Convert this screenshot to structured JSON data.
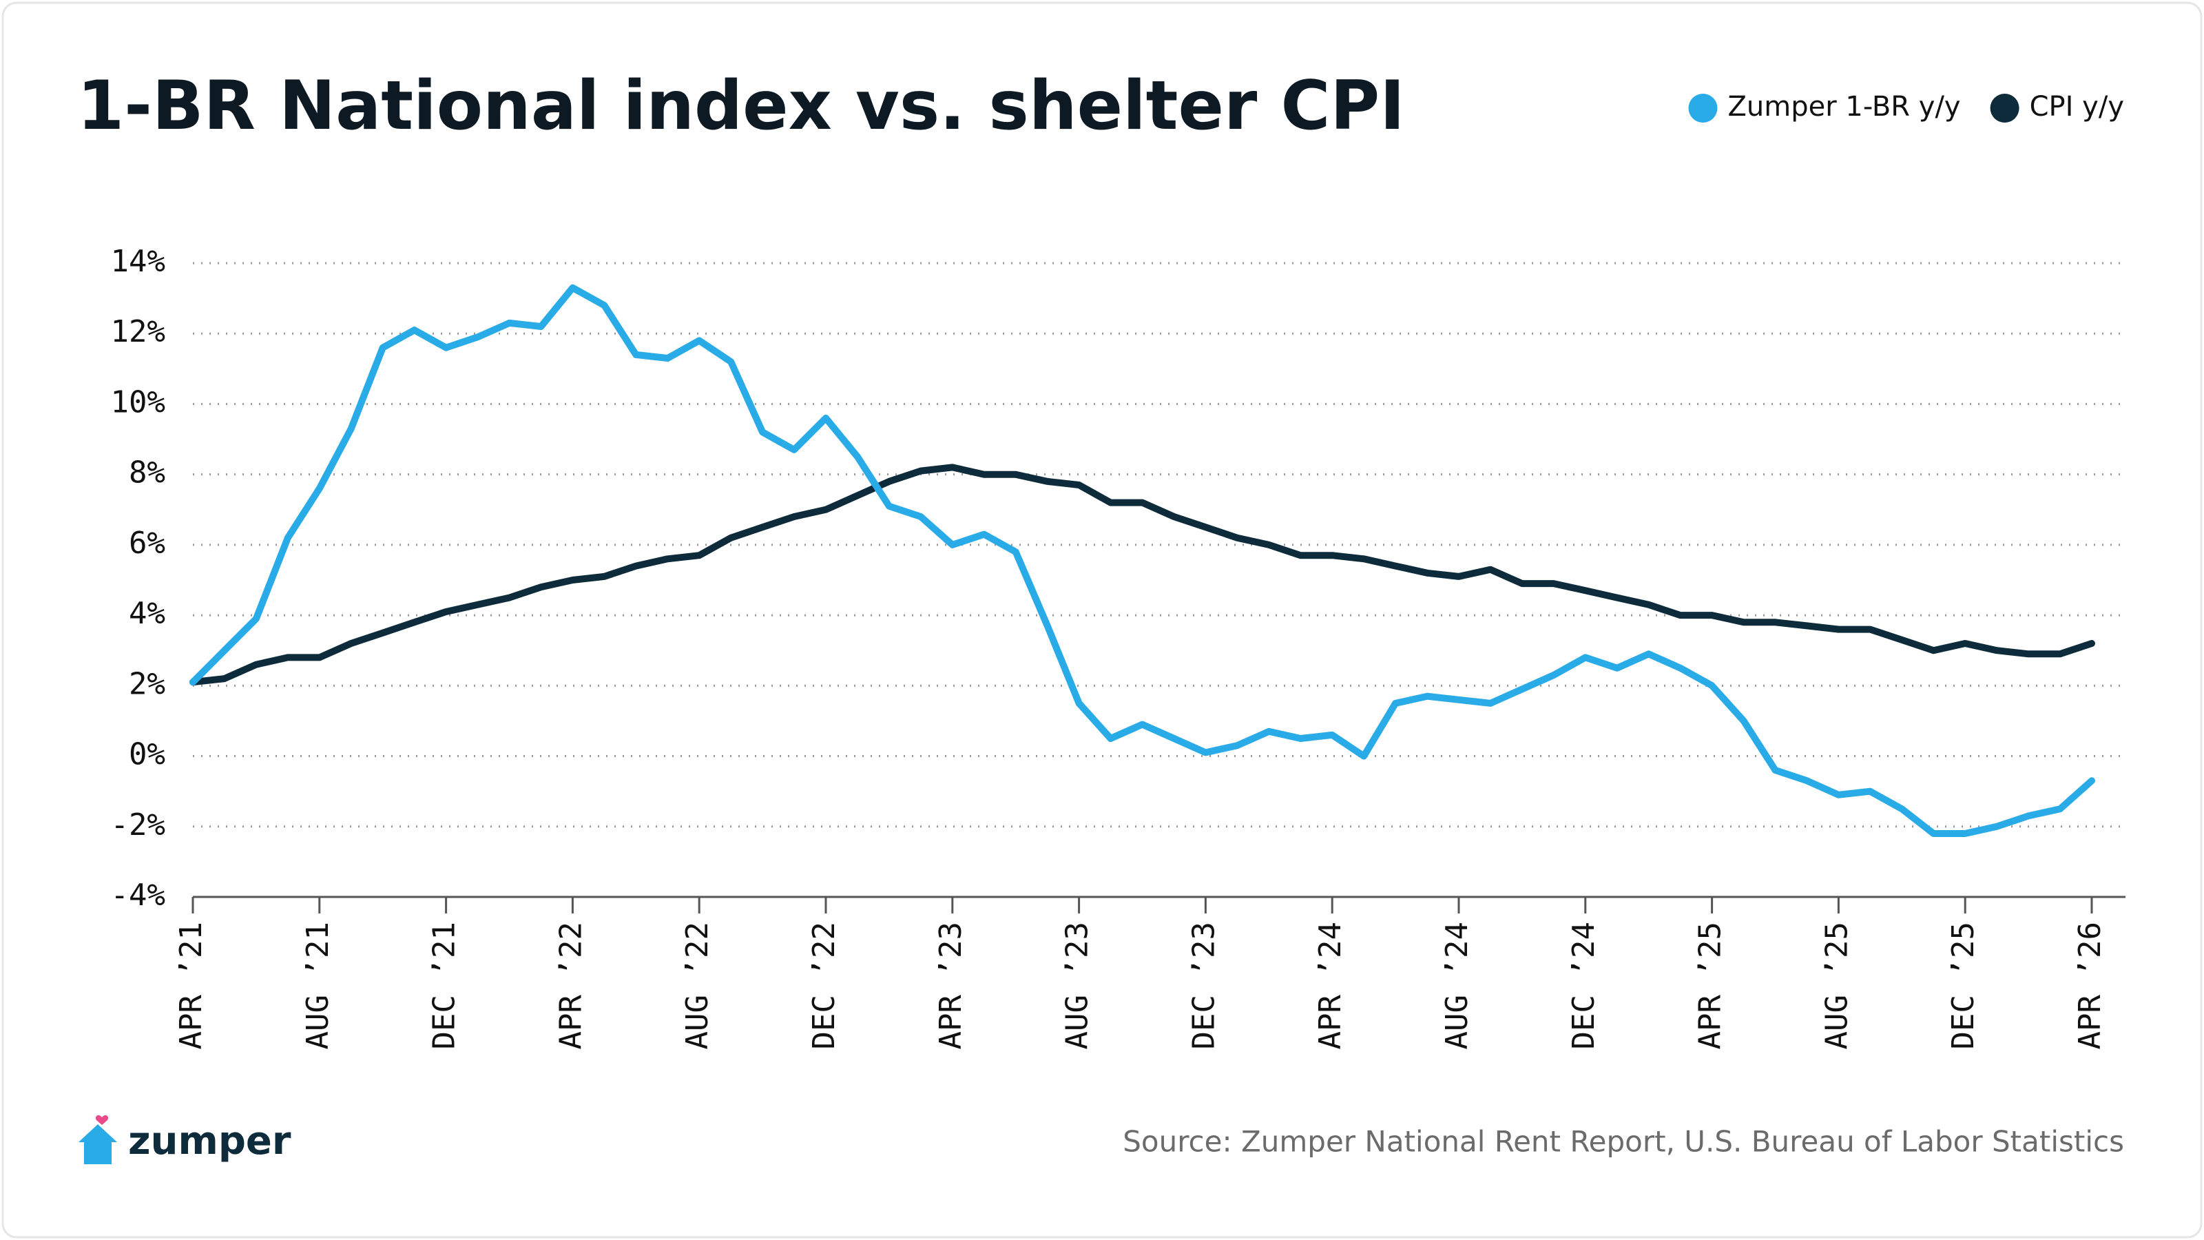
{
  "chart_data": {
    "type": "line",
    "title": "1-BR National index vs. shelter CPI",
    "source": "Source: Zumper National Rent Report, U.S. Bureau of Labor Statistics",
    "brand": "zumper",
    "categories": [
      "APR ’21",
      null,
      null,
      null,
      "AUG ’21",
      null,
      null,
      null,
      "DEC ’21",
      null,
      null,
      null,
      "APR ’22",
      null,
      null,
      null,
      "AUG ’22",
      null,
      null,
      null,
      "DEC ’22",
      null,
      null,
      null,
      "APR ’23",
      null,
      null,
      null,
      "AUG ’23",
      null,
      null,
      null,
      "DEC ’23",
      null,
      null,
      null,
      "APR ’24",
      null,
      null,
      null,
      "AUG ’24",
      null,
      null,
      null,
      "DEC ’24",
      null,
      null,
      null,
      "APR ’25",
      null,
      null,
      null,
      "AUG ’25",
      null,
      null,
      null,
      "DEC ’25",
      null,
      null,
      null,
      "APR ’26"
    ],
    "series": [
      {
        "name": "Zumper 1-BR y/y",
        "color": "#29abe8",
        "values": [
          2.1,
          3.0,
          3.9,
          6.2,
          7.6,
          9.3,
          11.6,
          12.1,
          11.6,
          11.9,
          12.3,
          12.2,
          13.3,
          12.8,
          11.4,
          11.3,
          11.8,
          11.2,
          9.2,
          8.7,
          9.6,
          8.5,
          7.1,
          6.8,
          6.0,
          6.3,
          5.8,
          3.7,
          1.5,
          0.5,
          0.9,
          0.5,
          0.1,
          0.3,
          0.7,
          0.5,
          0.6,
          0.0,
          1.5,
          1.7,
          1.6,
          1.5,
          1.9,
          2.3,
          2.8,
          2.5,
          2.9,
          2.5,
          2.0,
          1.0,
          -0.4,
          -0.7,
          -1.1,
          -1.0,
          -1.5,
          -2.2,
          -2.2,
          -2.0,
          -1.7,
          -1.5,
          -0.7
        ]
      },
      {
        "name": "CPI y/y",
        "color": "#0d2b3b",
        "values": [
          2.1,
          2.2,
          2.6,
          2.8,
          2.8,
          3.2,
          3.5,
          3.8,
          4.1,
          4.3,
          4.5,
          4.8,
          5.0,
          5.1,
          5.4,
          5.6,
          5.7,
          6.2,
          6.5,
          6.8,
          7.0,
          7.4,
          7.8,
          8.1,
          8.2,
          8.0,
          8.0,
          7.8,
          7.7,
          7.2,
          7.2,
          6.8,
          6.5,
          6.2,
          6.0,
          5.7,
          5.7,
          5.6,
          5.4,
          5.2,
          5.1,
          5.3,
          4.9,
          4.9,
          4.7,
          4.5,
          4.3,
          4.0,
          4.0,
          3.8,
          3.8,
          3.7,
          3.6,
          3.6,
          3.3,
          3.0,
          3.2,
          3.0,
          2.9,
          2.9,
          3.2
        ]
      }
    ],
    "ylim": [
      -4,
      14
    ],
    "yticks": [
      {
        "value": -4,
        "label": "-4%"
      },
      {
        "value": -2,
        "label": "-2%"
      },
      {
        "value": 0,
        "label": "0%"
      },
      {
        "value": 2,
        "label": "2%"
      },
      {
        "value": 4,
        "label": "4%"
      },
      {
        "value": 6,
        "label": "6%"
      },
      {
        "value": 8,
        "label": "8%"
      },
      {
        "value": 10,
        "label": "10%"
      },
      {
        "value": 12,
        "label": "12%"
      },
      {
        "value": 14,
        "label": "14%"
      }
    ],
    "grid": true,
    "legend": "top-right"
  }
}
